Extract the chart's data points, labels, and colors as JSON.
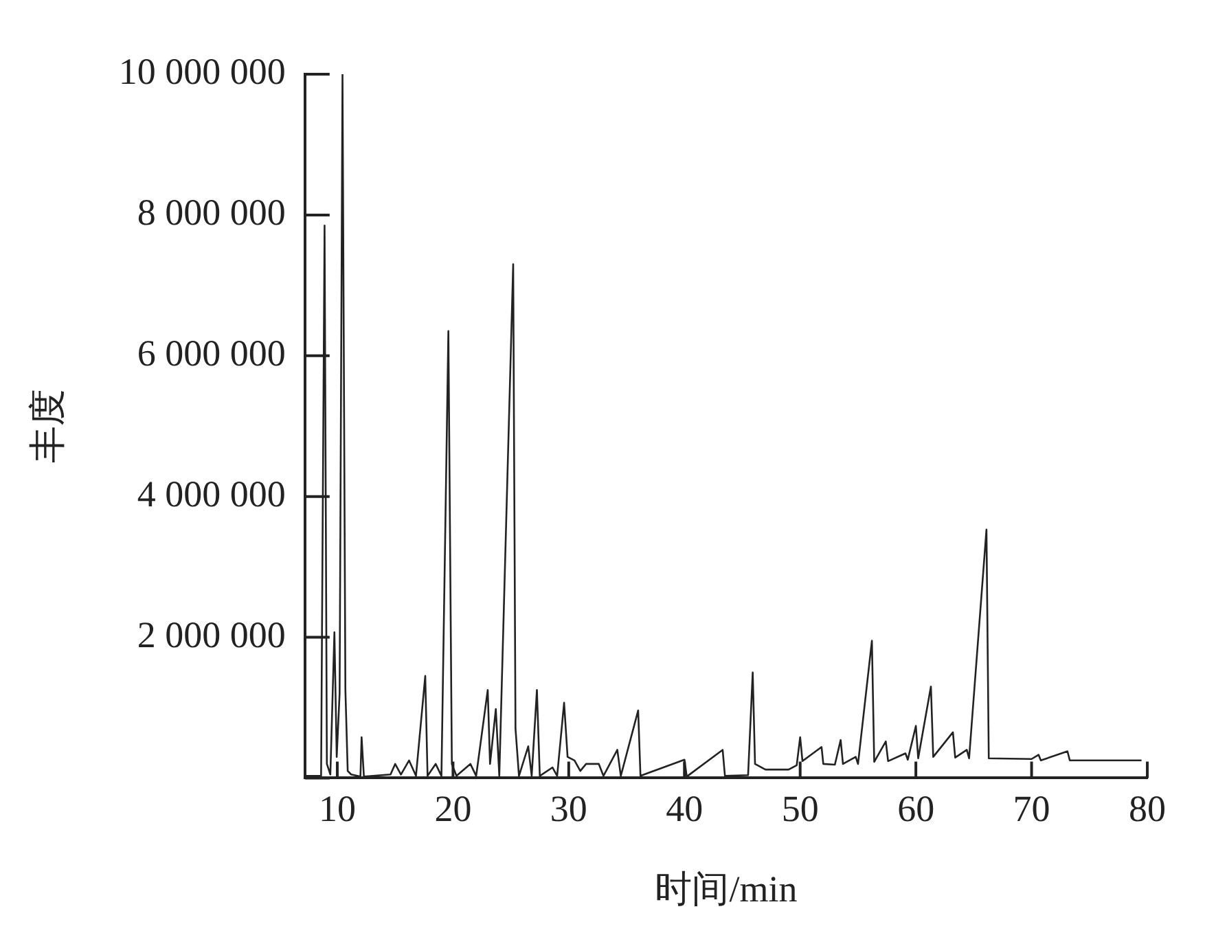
{
  "chart_data": {
    "type": "line",
    "xlabel": "时间/min",
    "ylabel": "丰度",
    "color": "#222222",
    "marker": "none",
    "line_style": "solid",
    "x": [
      7.3,
      8.6,
      8.9,
      9.1,
      9.4,
      9.75,
      9.95,
      10.2,
      10.45,
      10.7,
      10.9,
      11.2,
      12.0,
      12.1,
      12.3,
      14.6,
      15.0,
      15.5,
      16.2,
      16.8,
      17.6,
      17.8,
      18.5,
      19.0,
      19.6,
      19.9,
      20.3,
      21.5,
      22.0,
      23.0,
      23.2,
      23.7,
      24.0,
      25.2,
      25.4,
      25.7,
      26.5,
      26.8,
      27.25,
      27.5,
      28.6,
      29.0,
      29.6,
      29.9,
      30.5,
      31.0,
      31.5,
      32.6,
      33.0,
      34.2,
      34.5,
      36.0,
      36.2,
      37.0,
      40.0,
      40.2,
      43.3,
      43.5,
      45.5,
      45.9,
      46.1,
      47.0,
      49.0,
      49.7,
      50.0,
      50.2,
      51.85,
      52.0,
      53.0,
      53.5,
      53.7,
      54.8,
      55.0,
      56.2,
      56.4,
      57.4,
      57.6,
      59.1,
      59.3,
      60.0,
      60.2,
      61.3,
      61.5,
      63.2,
      63.4,
      64.4,
      64.6,
      66.1,
      66.3,
      70.0,
      70.6,
      70.8,
      73.1,
      73.3,
      79.5
    ],
    "values": [
      30000,
      30000,
      7850000,
      200000,
      50000,
      2070000,
      300000,
      1200000,
      10000000,
      1250000,
      100000,
      50000,
      20000,
      580000,
      20000,
      50000,
      200000,
      50000,
      250000,
      30000,
      1450000,
      30000,
      200000,
      30000,
      6350000,
      200000,
      30000,
      200000,
      30000,
      1250000,
      200000,
      980000,
      30000,
      7300000,
      700000,
      30000,
      450000,
      30000,
      1250000,
      30000,
      150000,
      30000,
      1070000,
      300000,
      250000,
      100000,
      200000,
      200000,
      30000,
      400000,
      30000,
      960000,
      30000,
      80000,
      260000,
      20000,
      400000,
      30000,
      40000,
      1500000,
      200000,
      120000,
      120000,
      180000,
      580000,
      240000,
      440000,
      200000,
      190000,
      540000,
      200000,
      300000,
      200000,
      1950000,
      230000,
      520000,
      240000,
      350000,
      260000,
      740000,
      280000,
      1300000,
      300000,
      650000,
      290000,
      400000,
      280000,
      3530000,
      280000,
      270000,
      330000,
      250000,
      380000,
      250000,
      250000
    ],
    "xlim": [
      7.2,
      80
    ],
    "xticks": [
      10,
      20,
      30,
      40,
      50,
      60,
      70,
      80
    ],
    "ylim": [
      0,
      10000000
    ],
    "yticks": [
      {
        "value": 0,
        "label": null
      },
      {
        "value": 2000000,
        "label": "2 000 000"
      },
      {
        "value": 4000000,
        "label": "4 000 000"
      },
      {
        "value": 6000000,
        "label": "6 000 000"
      },
      {
        "value": 8000000,
        "label": "8 000 000"
      },
      {
        "value": 10000000,
        "label": "10 000 000"
      }
    ]
  }
}
